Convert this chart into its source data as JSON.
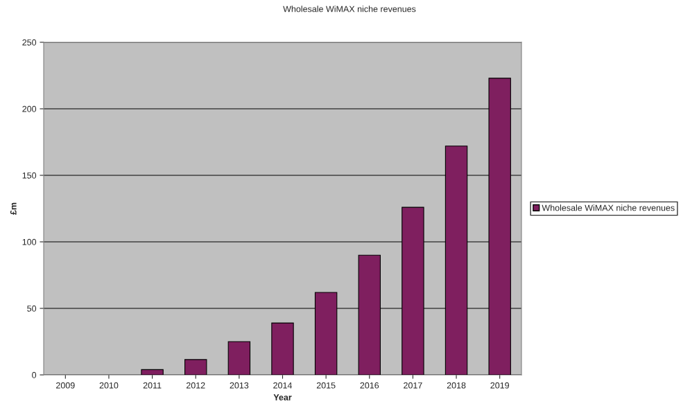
{
  "chart_data": {
    "type": "bar",
    "title": "Wholesale WiMAX niche revenues",
    "xlabel": "Year",
    "ylabel": "£m",
    "categories": [
      "2009",
      "2010",
      "2011",
      "2012",
      "2013",
      "2014",
      "2015",
      "2016",
      "2017",
      "2018",
      "2019"
    ],
    "series": [
      {
        "name": "Wholesale WiMAX niche revenues",
        "color": "#7f1f5f",
        "values": [
          0,
          0,
          4,
          11.5,
          25,
          39,
          62,
          90,
          126,
          172,
          223
        ]
      }
    ],
    "ylim": [
      0,
      250
    ],
    "yticks": [
      0,
      50,
      100,
      150,
      200,
      250
    ],
    "grid": "y",
    "legend": "right"
  }
}
